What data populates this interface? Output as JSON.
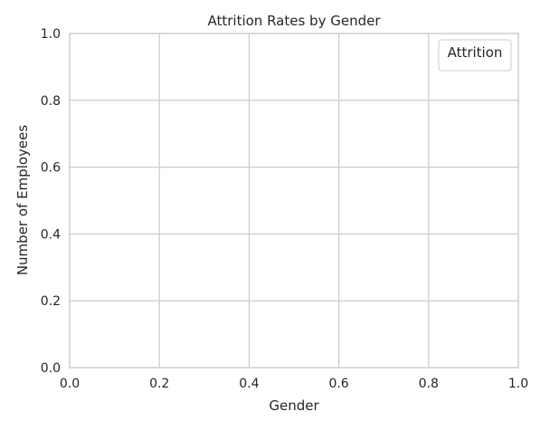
{
  "chart_data": {
    "type": "bar",
    "title": "Attrition Rates by Gender",
    "xlabel": "Gender",
    "ylabel": "Number of Employees",
    "xlim": [
      0,
      1
    ],
    "ylim": [
      0,
      1
    ],
    "x_ticks": [
      "0.0",
      "0.2",
      "0.4",
      "0.6",
      "0.8",
      "1.0"
    ],
    "y_ticks": [
      "0.0",
      "0.2",
      "0.4",
      "0.6",
      "0.8",
      "1.0"
    ],
    "series": [],
    "grid": true,
    "legend": {
      "title": "Attrition",
      "placement": "top-right",
      "entries": []
    }
  },
  "colors": {
    "grid": "#cccccc",
    "frame": "#cccccc",
    "text": "#262626",
    "background": "#ffffff"
  }
}
